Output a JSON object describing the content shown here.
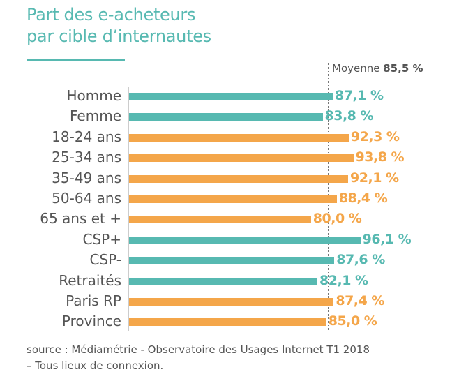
{
  "chart_data": {
    "type": "bar",
    "orientation": "horizontal",
    "title": "Part des e-acheteurs par cible d’internautes",
    "title_lines": [
      "Part des e-acheteurs",
      "par cible d’internautes"
    ],
    "categories": [
      "Homme",
      "Femme",
      "18-24 ans",
      "25-34 ans",
      "35-49 ans",
      "50-64 ans",
      "65 ans et +",
      "CSP+",
      "CSP-",
      "Retraités",
      "Paris RP",
      "Province"
    ],
    "values": [
      87.1,
      83.8,
      92.3,
      93.8,
      92.1,
      88.4,
      80.0,
      96.1,
      87.6,
      82.1,
      87.4,
      85.0
    ],
    "value_labels": [
      "87,1 %",
      "83,8 %",
      "92,3 %",
      "93,8 %",
      "92,1 %",
      "88,4 %",
      "80,0 %",
      "96,1 %",
      "87,6 %",
      "82,1 %",
      "87,4 %",
      "85,0 %"
    ],
    "bar_colors": [
      "#57b9b1",
      "#57b9b1",
      "#f4a64a",
      "#f4a64a",
      "#f4a64a",
      "#f4a64a",
      "#f4a64a",
      "#57b9b1",
      "#57b9b1",
      "#57b9b1",
      "#f4a64a",
      "#f4a64a"
    ],
    "unit": "%",
    "reference_line": {
      "label": "Moyenne",
      "value": 85.5,
      "value_label": "85,5 %"
    },
    "grid": false
  },
  "source": [
    "source : Médiamétrie - Observatoire des Usages Internet T1 2018",
    "– Tous lieux de connexion."
  ],
  "colors": {
    "teal": "#57b9b1",
    "orange": "#f4a64a",
    "text": "#555555"
  }
}
